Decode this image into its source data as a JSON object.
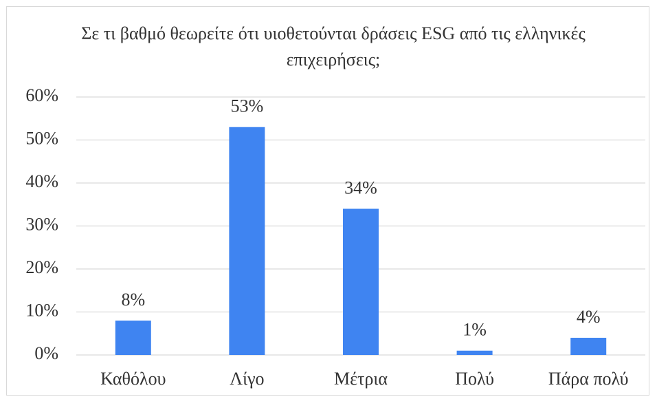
{
  "chart_data": {
    "type": "bar",
    "title": "Σε τι βαθμό θεωρείτε ότι υιοθετούνται δράσεις ESG από τις ελληνικές επιχειρήσεις;",
    "categories": [
      "Καθόλου",
      "Λίγο",
      "Μέτρια",
      "Πολύ",
      "Πάρα πολύ"
    ],
    "values": [
      8,
      53,
      34,
      1,
      4
    ],
    "value_labels": [
      "8%",
      "53%",
      "34%",
      "1%",
      "4%"
    ],
    "color": "#3f84f1",
    "ylim": [
      0,
      60
    ],
    "yticks": [
      {
        "value": 0,
        "label": "0%"
      },
      {
        "value": 10,
        "label": "10%"
      },
      {
        "value": 20,
        "label": "20%"
      },
      {
        "value": 30,
        "label": "30%"
      },
      {
        "value": 40,
        "label": "40%"
      },
      {
        "value": 50,
        "label": "50%"
      },
      {
        "value": 60,
        "label": "60%"
      }
    ],
    "grid": true
  }
}
